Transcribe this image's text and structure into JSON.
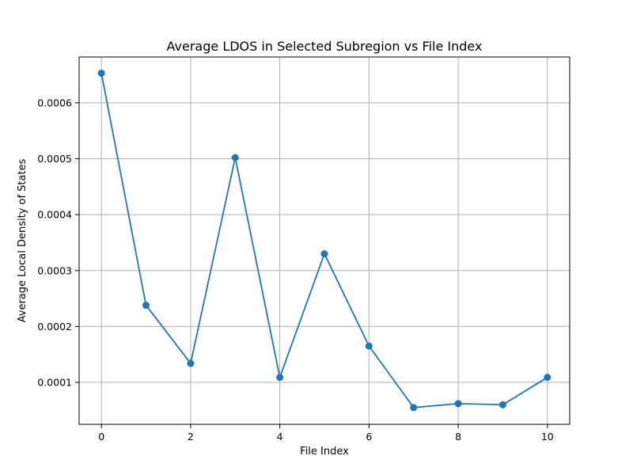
{
  "chart_data": {
    "type": "line",
    "title": "Average LDOS in Selected Subregion vs File Index",
    "xlabel": "File Index",
    "ylabel": "Average Local Density of States",
    "xlim": [
      -0.5,
      10.5
    ],
    "ylim": [
      2.5e-05,
      0.000682
    ],
    "xticks": [
      0,
      2,
      4,
      6,
      8,
      10
    ],
    "yticks": [
      0.0001,
      0.0002,
      0.0003,
      0.0004,
      0.0005,
      0.0006
    ],
    "xtick_labels": [
      "0",
      "2",
      "4",
      "6",
      "8",
      "10"
    ],
    "ytick_labels": [
      "0.0001",
      "0.0002",
      "0.0003",
      "0.0004",
      "0.0005",
      "0.0006"
    ],
    "grid": true,
    "color": "#1f77b4",
    "marker": "circle",
    "x": [
      0,
      1,
      2,
      3,
      4,
      5,
      6,
      7,
      8,
      9,
      10
    ],
    "values": [
      0.000653,
      0.000238,
      0.000134,
      0.000502,
      0.000109,
      0.00033,
      0.000165,
      5.5e-05,
      6.2e-05,
      6e-05,
      0.000109
    ]
  }
}
